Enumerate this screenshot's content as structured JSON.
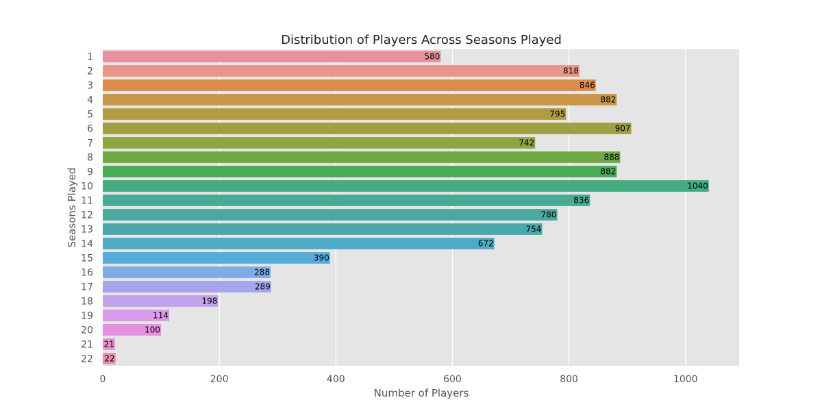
{
  "chart_data": {
    "type": "bar",
    "orientation": "horizontal",
    "title": "Distribution of Players Across Seasons Played",
    "xlabel": "Number of Players",
    "ylabel": "Seasons Played",
    "xlim": [
      0,
      1092
    ],
    "xticks": [
      0,
      200,
      400,
      600,
      800,
      1000
    ],
    "grid": true,
    "categories": [
      "1",
      "2",
      "3",
      "4",
      "5",
      "6",
      "7",
      "8",
      "9",
      "10",
      "11",
      "12",
      "13",
      "14",
      "15",
      "16",
      "17",
      "18",
      "19",
      "20",
      "21",
      "22"
    ],
    "values": [
      580,
      818,
      846,
      882,
      795,
      907,
      742,
      888,
      882,
      1040,
      836,
      780,
      754,
      672,
      390,
      288,
      289,
      198,
      114,
      100,
      21,
      22
    ],
    "colors": [
      "#e8919e",
      "#e8968a",
      "#dd8c48",
      "#c99747",
      "#b19c44",
      "#a19f44",
      "#8fa544",
      "#6ea944",
      "#4aab56",
      "#47ac82",
      "#49ab93",
      "#4aa99e",
      "#4aa8ab",
      "#4eaac5",
      "#57acd9",
      "#80abe6",
      "#a6a5ec",
      "#c3a1ec",
      "#d99bea",
      "#e58fde",
      "#e891c8",
      "#e88fb3"
    ],
    "background": "#e5e5e5"
  }
}
